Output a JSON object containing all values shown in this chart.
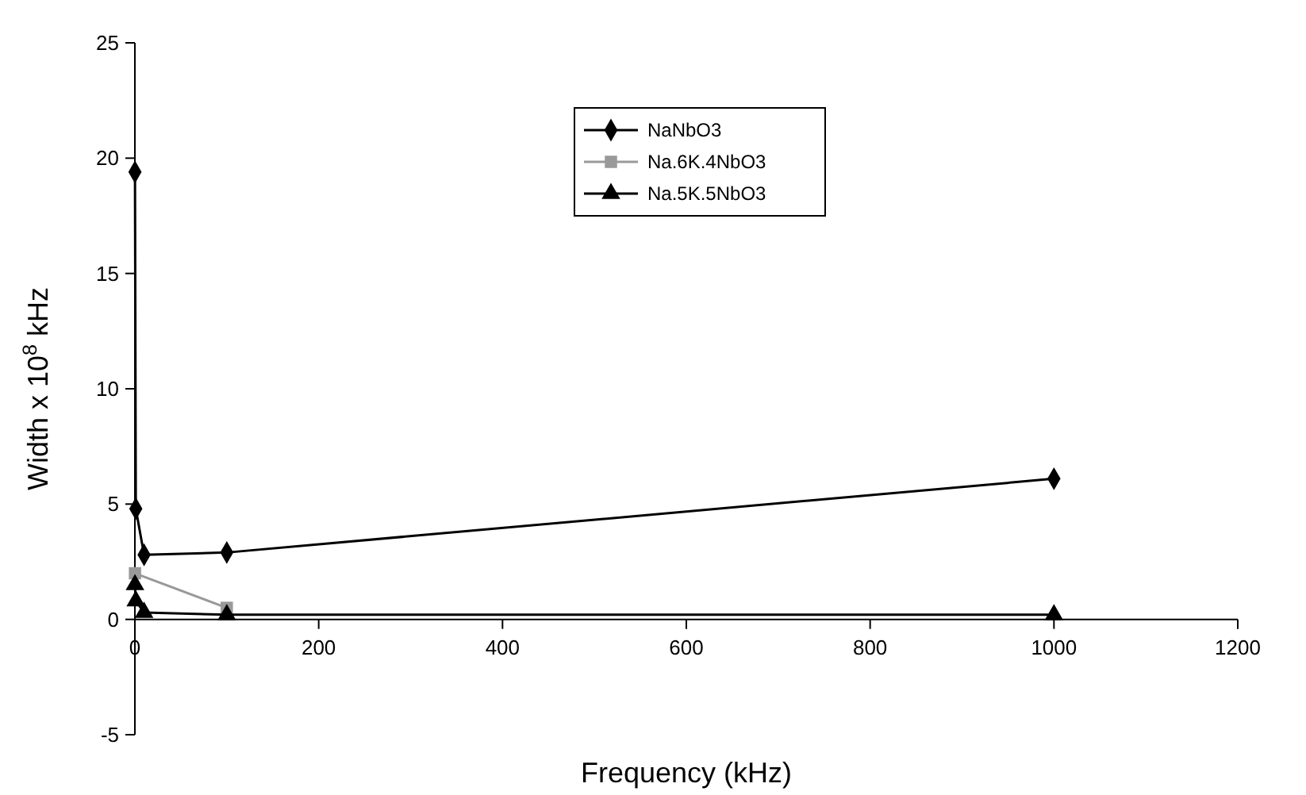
{
  "chart_data": {
    "type": "line",
    "xlabel": "Frequency (kHz)",
    "ylabel": "Width x 10$^{8}$ kHz",
    "xlim": [
      0,
      1200
    ],
    "xticks": [
      0,
      200,
      400,
      600,
      800,
      1000,
      1200
    ],
    "ylim": [
      -5,
      25
    ],
    "yticks": [
      -5,
      0,
      5,
      10,
      15,
      20,
      25
    ],
    "grid": false,
    "legend": "top",
    "series": [
      {
        "name": "NaNbO3",
        "color": "#000000",
        "marker": "diamond",
        "x": [
          0.1,
          1,
          10,
          100,
          1000
        ],
        "values": [
          19.4,
          4.8,
          2.8,
          2.9,
          6.1
        ]
      },
      {
        "name": "Na.6K.4NbO3",
        "color": "#999999",
        "marker": "square",
        "x": [
          0.1,
          100
        ],
        "values": [
          2.0,
          0.5
        ]
      },
      {
        "name": "Na.5K.5NbO3",
        "color": "#000000",
        "marker": "triangle",
        "x": [
          0.1,
          1,
          10,
          100,
          1000
        ],
        "values": [
          1.5,
          0.8,
          0.3,
          0.2,
          0.2
        ]
      }
    ]
  }
}
